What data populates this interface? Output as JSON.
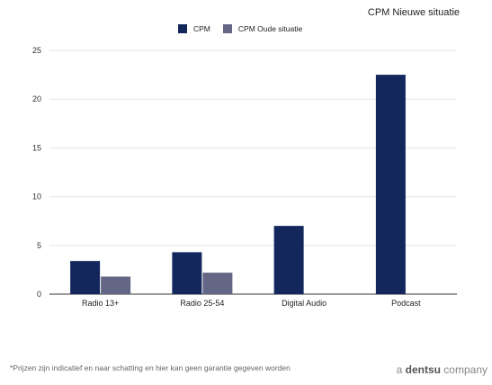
{
  "header": {
    "title": "CPM Nieuwe situatie"
  },
  "footer": {
    "note": "*Prijzen zijn indicatief en naar schatting en hier kan geen garantie gegeven worden",
    "brand_prefix": "a ",
    "brand_name": "dentsu",
    "brand_suffix": " company"
  },
  "colors": {
    "cpm": "#13275c",
    "oude": "#646685",
    "grid": "#e6e6e6",
    "axis": "#333333"
  },
  "chart_data": {
    "type": "bar",
    "title": "",
    "xlabel": "",
    "ylabel": "",
    "categories": [
      "Radio 13+",
      "Radio 25-54",
      "Digital Audio",
      "Podcast"
    ],
    "series": [
      {
        "name": "CPM",
        "values": [
          3.4,
          4.3,
          7.0,
          22.5
        ]
      },
      {
        "name": "CPM Oude situatie",
        "values": [
          1.8,
          2.2,
          null,
          null
        ]
      }
    ],
    "ylim": [
      0,
      25
    ],
    "yticks": [
      "0",
      "5",
      "10",
      "15",
      "20",
      "25"
    ],
    "grid": true,
    "legend_position": "top"
  }
}
